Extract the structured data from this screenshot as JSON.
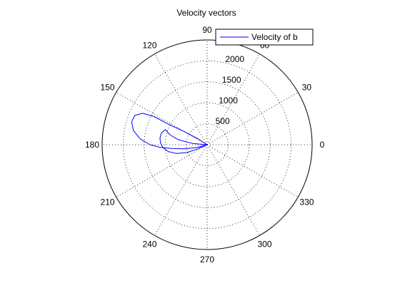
{
  "chart_data": {
    "type": "polar-line",
    "title": "Velocity vectors",
    "angle_unit": "degrees",
    "angle_ticks": [
      0,
      30,
      60,
      90,
      120,
      150,
      180,
      210,
      240,
      270,
      300,
      330
    ],
    "radius_ticks": [
      500,
      1000,
      1500,
      2000
    ],
    "rlim": [
      0,
      2500
    ],
    "grid": true,
    "legend": {
      "position": "top-right",
      "entries": [
        "Velocity of b"
      ]
    },
    "series": [
      {
        "name": "Velocity of b",
        "color": "#0000ff",
        "points": [
          {
            "theta": 0,
            "r": 0
          },
          {
            "theta": 175,
            "r": 350
          },
          {
            "theta": 170,
            "r": 700
          },
          {
            "theta": 165,
            "r": 920
          },
          {
            "theta": 160,
            "r": 1060
          },
          {
            "theta": 166,
            "r": 1125
          },
          {
            "theta": 172,
            "r": 1135
          },
          {
            "theta": 178,
            "r": 1110
          },
          {
            "theta": 184,
            "r": 1050
          },
          {
            "theta": 190,
            "r": 940
          },
          {
            "theta": 196,
            "r": 760
          },
          {
            "theta": 201,
            "r": 520
          },
          {
            "theta": 204,
            "r": 260
          },
          {
            "theta": 0,
            "r": 0
          },
          {
            "theta": 195,
            "r": 260
          },
          {
            "theta": 190,
            "r": 560
          },
          {
            "theta": 186,
            "r": 860
          },
          {
            "theta": 183,
            "r": 1130
          },
          {
            "theta": 180,
            "r": 1360
          },
          {
            "theta": 175,
            "r": 1600
          },
          {
            "theta": 169,
            "r": 1790
          },
          {
            "theta": 163,
            "r": 1880
          },
          {
            "theta": 158,
            "r": 1860
          },
          {
            "theta": 154,
            "r": 1710
          },
          {
            "theta": 152,
            "r": 1430
          },
          {
            "theta": 152,
            "r": 1040
          },
          {
            "theta": 150,
            "r": 620
          },
          {
            "theta": 147,
            "r": 250
          },
          {
            "theta": 0,
            "r": 0
          }
        ]
      }
    ]
  }
}
